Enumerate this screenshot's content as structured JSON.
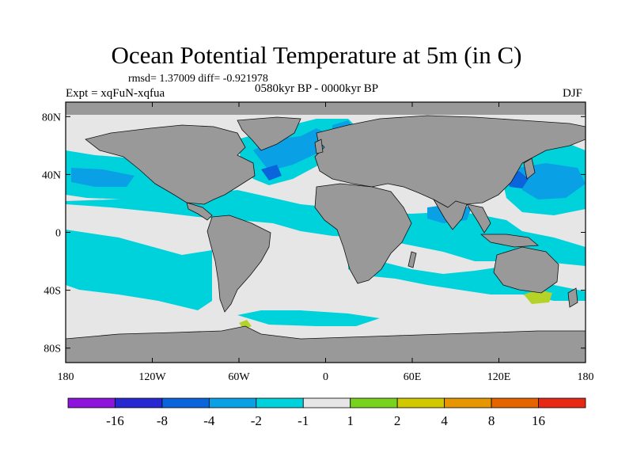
{
  "title": "Ocean Potential Temperature at 5m (in C)",
  "stats": "rmsd= 1.37009 diff= -0.921978",
  "experiment": "Expt = xqFuN-xqfua",
  "period": "0580kyr BP - 0000kyr BP",
  "season": "DJF",
  "map": {
    "y_ticks": [
      {
        "lat": 80,
        "label": "80N"
      },
      {
        "lat": 40,
        "label": "40N"
      },
      {
        "lat": 0,
        "label": "0"
      },
      {
        "lat": -40,
        "label": "40S"
      },
      {
        "lat": -80,
        "label": "80S"
      }
    ],
    "x_ticks": [
      {
        "lon": -180,
        "label": "180"
      },
      {
        "lon": -120,
        "label": "120W"
      },
      {
        "lon": -60,
        "label": "60W"
      },
      {
        "lon": 0,
        "label": "0"
      },
      {
        "lon": 60,
        "label": "60E"
      },
      {
        "lon": 120,
        "label": "120E"
      },
      {
        "lon": 180,
        "label": "180"
      }
    ],
    "lat_range": [
      -90,
      90
    ],
    "lon_range": [
      -180,
      180
    ],
    "colors": {
      "ocean_neutral": "#e6e6e6",
      "land": "#999999",
      "cyan": "#00d2dc",
      "light_blue": "#0aa0e6",
      "blue": "#0a64dc",
      "green": "#78d21e",
      "yellow_green": "#b4d228"
    }
  },
  "colorbar": {
    "colors": [
      "#8c14dc",
      "#2828d2",
      "#0a64dc",
      "#0aa0e6",
      "#00d2dc",
      "#e6e6e6",
      "#78d21e",
      "#d2c800",
      "#e69600",
      "#e66400",
      "#e62814"
    ],
    "labels": [
      "-16",
      "-8",
      "-4",
      "-2",
      "-1",
      "1",
      "2",
      "4",
      "8",
      "16"
    ]
  }
}
